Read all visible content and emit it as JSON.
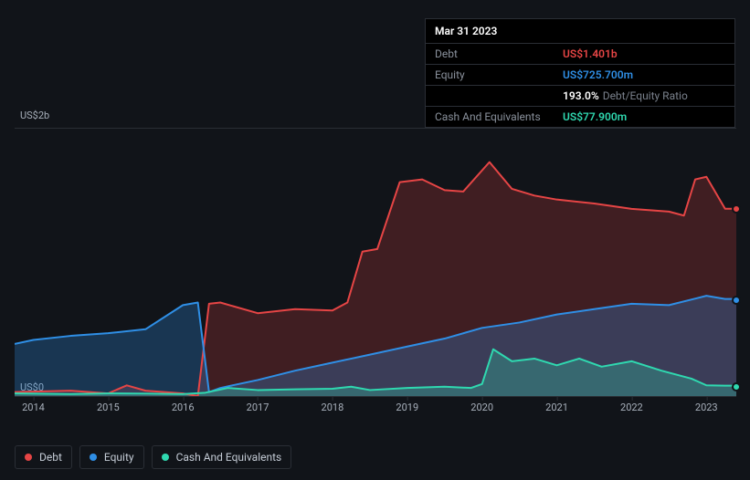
{
  "tooltip": {
    "title": "Mar 31 2023",
    "rows": [
      {
        "label": "Debt",
        "value": "US$1.401b",
        "color": "#e64545",
        "suffix": ""
      },
      {
        "label": "Equity",
        "value": "US$725.700m",
        "color": "#2f8fe6",
        "suffix": ""
      },
      {
        "label": "",
        "value": "193.0%",
        "color": "#ffffff",
        "suffix": "Debt/Equity Ratio"
      },
      {
        "label": "Cash And Equivalents",
        "value": "US$77.900m",
        "color": "#2fd9b0",
        "suffix": ""
      }
    ]
  },
  "chart": {
    "type": "area",
    "background": "#111419",
    "grid_color": "#2a2e35",
    "y_axis": {
      "min": 0,
      "max": 2000,
      "labels": [
        "US$2b",
        "US$0"
      ],
      "label_fontsize": 11
    },
    "x_axis": {
      "ticks": [
        "2014",
        "2015",
        "2016",
        "2017",
        "2018",
        "2019",
        "2020",
        "2021",
        "2022",
        "2023"
      ],
      "min": 2013.75,
      "max": 2023.4
    },
    "series": [
      {
        "name": "Debt",
        "color": "#e64545",
        "fill_opacity": 0.22,
        "stroke_width": 2,
        "points": [
          [
            2013.75,
            30
          ],
          [
            2014.5,
            40
          ],
          [
            2015.0,
            20
          ],
          [
            2015.25,
            80
          ],
          [
            2015.5,
            40
          ],
          [
            2016.0,
            20
          ],
          [
            2016.2,
            0
          ],
          [
            2016.35,
            690
          ],
          [
            2016.5,
            700
          ],
          [
            2017.0,
            620
          ],
          [
            2017.5,
            650
          ],
          [
            2018.0,
            640
          ],
          [
            2018.2,
            700
          ],
          [
            2018.4,
            1080
          ],
          [
            2018.6,
            1100
          ],
          [
            2018.9,
            1600
          ],
          [
            2019.2,
            1620
          ],
          [
            2019.5,
            1540
          ],
          [
            2019.75,
            1530
          ],
          [
            2020.1,
            1750
          ],
          [
            2020.4,
            1550
          ],
          [
            2020.7,
            1500
          ],
          [
            2021.0,
            1470
          ],
          [
            2021.5,
            1440
          ],
          [
            2022.0,
            1400
          ],
          [
            2022.5,
            1380
          ],
          [
            2022.7,
            1350
          ],
          [
            2022.85,
            1620
          ],
          [
            2023.0,
            1640
          ],
          [
            2023.25,
            1401
          ],
          [
            2023.4,
            1401
          ]
        ]
      },
      {
        "name": "Equity",
        "color": "#2f8fe6",
        "fill_opacity": 0.28,
        "stroke_width": 2,
        "points": [
          [
            2013.75,
            390
          ],
          [
            2014.0,
            420
          ],
          [
            2014.5,
            450
          ],
          [
            2015.0,
            470
          ],
          [
            2015.5,
            500
          ],
          [
            2016.0,
            680
          ],
          [
            2016.2,
            700
          ],
          [
            2016.35,
            30
          ],
          [
            2016.5,
            60
          ],
          [
            2017.0,
            120
          ],
          [
            2017.5,
            190
          ],
          [
            2018.0,
            250
          ],
          [
            2018.5,
            310
          ],
          [
            2019.0,
            370
          ],
          [
            2019.5,
            430
          ],
          [
            2020.0,
            510
          ],
          [
            2020.5,
            550
          ],
          [
            2021.0,
            610
          ],
          [
            2021.5,
            650
          ],
          [
            2022.0,
            690
          ],
          [
            2022.5,
            680
          ],
          [
            2023.0,
            750
          ],
          [
            2023.25,
            726
          ],
          [
            2023.4,
            726
          ]
        ]
      },
      {
        "name": "Cash And Equivalents",
        "color": "#2fd9b0",
        "fill_opacity": 0.28,
        "stroke_width": 2,
        "points": [
          [
            2013.75,
            20
          ],
          [
            2014.5,
            15
          ],
          [
            2015.0,
            20
          ],
          [
            2015.5,
            18
          ],
          [
            2016.0,
            15
          ],
          [
            2016.3,
            25
          ],
          [
            2016.6,
            60
          ],
          [
            2017.0,
            45
          ],
          [
            2017.5,
            50
          ],
          [
            2018.0,
            55
          ],
          [
            2018.25,
            70
          ],
          [
            2018.5,
            45
          ],
          [
            2019.0,
            60
          ],
          [
            2019.5,
            70
          ],
          [
            2019.85,
            60
          ],
          [
            2020.0,
            90
          ],
          [
            2020.15,
            350
          ],
          [
            2020.4,
            260
          ],
          [
            2020.7,
            280
          ],
          [
            2021.0,
            230
          ],
          [
            2021.3,
            280
          ],
          [
            2021.6,
            220
          ],
          [
            2022.0,
            260
          ],
          [
            2022.4,
            190
          ],
          [
            2022.8,
            130
          ],
          [
            2023.0,
            80
          ],
          [
            2023.25,
            78
          ],
          [
            2023.4,
            78
          ]
        ]
      }
    ],
    "end_markers": true
  },
  "legend": {
    "items": [
      {
        "label": "Debt",
        "color": "#e64545"
      },
      {
        "label": "Equity",
        "color": "#2f8fe6"
      },
      {
        "label": "Cash And Equivalents",
        "color": "#2fd9b0"
      }
    ]
  }
}
